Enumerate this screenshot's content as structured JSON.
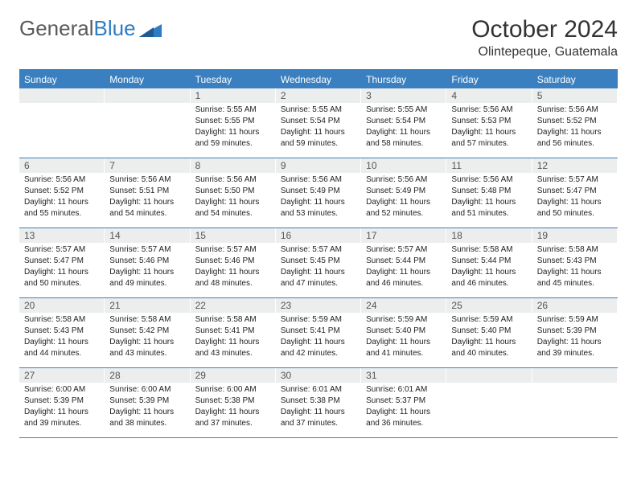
{
  "brand": {
    "part1": "General",
    "part2": "Blue"
  },
  "title": "October 2024",
  "location": "Olintepeque, Guatemala",
  "colors": {
    "header_bar": "#3a80c0",
    "daynum_bg": "#eceded",
    "text": "#222222",
    "logo_gray": "#5a5a5a",
    "logo_blue": "#2e7cc2"
  },
  "fonts": {
    "base_family": "Arial",
    "title_size_pt": 22,
    "location_size_pt": 12,
    "weekday_size_pt": 9,
    "cell_size_pt": 7.5
  },
  "weekdays": [
    "Sunday",
    "Monday",
    "Tuesday",
    "Wednesday",
    "Thursday",
    "Friday",
    "Saturday"
  ],
  "weeks": [
    [
      null,
      null,
      {
        "n": "1",
        "sunrise": "Sunrise: 5:55 AM",
        "sunset": "Sunset: 5:55 PM",
        "day1": "Daylight: 11 hours",
        "day2": "and 59 minutes."
      },
      {
        "n": "2",
        "sunrise": "Sunrise: 5:55 AM",
        "sunset": "Sunset: 5:54 PM",
        "day1": "Daylight: 11 hours",
        "day2": "and 59 minutes."
      },
      {
        "n": "3",
        "sunrise": "Sunrise: 5:55 AM",
        "sunset": "Sunset: 5:54 PM",
        "day1": "Daylight: 11 hours",
        "day2": "and 58 minutes."
      },
      {
        "n": "4",
        "sunrise": "Sunrise: 5:56 AM",
        "sunset": "Sunset: 5:53 PM",
        "day1": "Daylight: 11 hours",
        "day2": "and 57 minutes."
      },
      {
        "n": "5",
        "sunrise": "Sunrise: 5:56 AM",
        "sunset": "Sunset: 5:52 PM",
        "day1": "Daylight: 11 hours",
        "day2": "and 56 minutes."
      }
    ],
    [
      {
        "n": "6",
        "sunrise": "Sunrise: 5:56 AM",
        "sunset": "Sunset: 5:52 PM",
        "day1": "Daylight: 11 hours",
        "day2": "and 55 minutes."
      },
      {
        "n": "7",
        "sunrise": "Sunrise: 5:56 AM",
        "sunset": "Sunset: 5:51 PM",
        "day1": "Daylight: 11 hours",
        "day2": "and 54 minutes."
      },
      {
        "n": "8",
        "sunrise": "Sunrise: 5:56 AM",
        "sunset": "Sunset: 5:50 PM",
        "day1": "Daylight: 11 hours",
        "day2": "and 54 minutes."
      },
      {
        "n": "9",
        "sunrise": "Sunrise: 5:56 AM",
        "sunset": "Sunset: 5:49 PM",
        "day1": "Daylight: 11 hours",
        "day2": "and 53 minutes."
      },
      {
        "n": "10",
        "sunrise": "Sunrise: 5:56 AM",
        "sunset": "Sunset: 5:49 PM",
        "day1": "Daylight: 11 hours",
        "day2": "and 52 minutes."
      },
      {
        "n": "11",
        "sunrise": "Sunrise: 5:56 AM",
        "sunset": "Sunset: 5:48 PM",
        "day1": "Daylight: 11 hours",
        "day2": "and 51 minutes."
      },
      {
        "n": "12",
        "sunrise": "Sunrise: 5:57 AM",
        "sunset": "Sunset: 5:47 PM",
        "day1": "Daylight: 11 hours",
        "day2": "and 50 minutes."
      }
    ],
    [
      {
        "n": "13",
        "sunrise": "Sunrise: 5:57 AM",
        "sunset": "Sunset: 5:47 PM",
        "day1": "Daylight: 11 hours",
        "day2": "and 50 minutes."
      },
      {
        "n": "14",
        "sunrise": "Sunrise: 5:57 AM",
        "sunset": "Sunset: 5:46 PM",
        "day1": "Daylight: 11 hours",
        "day2": "and 49 minutes."
      },
      {
        "n": "15",
        "sunrise": "Sunrise: 5:57 AM",
        "sunset": "Sunset: 5:46 PM",
        "day1": "Daylight: 11 hours",
        "day2": "and 48 minutes."
      },
      {
        "n": "16",
        "sunrise": "Sunrise: 5:57 AM",
        "sunset": "Sunset: 5:45 PM",
        "day1": "Daylight: 11 hours",
        "day2": "and 47 minutes."
      },
      {
        "n": "17",
        "sunrise": "Sunrise: 5:57 AM",
        "sunset": "Sunset: 5:44 PM",
        "day1": "Daylight: 11 hours",
        "day2": "and 46 minutes."
      },
      {
        "n": "18",
        "sunrise": "Sunrise: 5:58 AM",
        "sunset": "Sunset: 5:44 PM",
        "day1": "Daylight: 11 hours",
        "day2": "and 46 minutes."
      },
      {
        "n": "19",
        "sunrise": "Sunrise: 5:58 AM",
        "sunset": "Sunset: 5:43 PM",
        "day1": "Daylight: 11 hours",
        "day2": "and 45 minutes."
      }
    ],
    [
      {
        "n": "20",
        "sunrise": "Sunrise: 5:58 AM",
        "sunset": "Sunset: 5:43 PM",
        "day1": "Daylight: 11 hours",
        "day2": "and 44 minutes."
      },
      {
        "n": "21",
        "sunrise": "Sunrise: 5:58 AM",
        "sunset": "Sunset: 5:42 PM",
        "day1": "Daylight: 11 hours",
        "day2": "and 43 minutes."
      },
      {
        "n": "22",
        "sunrise": "Sunrise: 5:58 AM",
        "sunset": "Sunset: 5:41 PM",
        "day1": "Daylight: 11 hours",
        "day2": "and 43 minutes."
      },
      {
        "n": "23",
        "sunrise": "Sunrise: 5:59 AM",
        "sunset": "Sunset: 5:41 PM",
        "day1": "Daylight: 11 hours",
        "day2": "and 42 minutes."
      },
      {
        "n": "24",
        "sunrise": "Sunrise: 5:59 AM",
        "sunset": "Sunset: 5:40 PM",
        "day1": "Daylight: 11 hours",
        "day2": "and 41 minutes."
      },
      {
        "n": "25",
        "sunrise": "Sunrise: 5:59 AM",
        "sunset": "Sunset: 5:40 PM",
        "day1": "Daylight: 11 hours",
        "day2": "and 40 minutes."
      },
      {
        "n": "26",
        "sunrise": "Sunrise: 5:59 AM",
        "sunset": "Sunset: 5:39 PM",
        "day1": "Daylight: 11 hours",
        "day2": "and 39 minutes."
      }
    ],
    [
      {
        "n": "27",
        "sunrise": "Sunrise: 6:00 AM",
        "sunset": "Sunset: 5:39 PM",
        "day1": "Daylight: 11 hours",
        "day2": "and 39 minutes."
      },
      {
        "n": "28",
        "sunrise": "Sunrise: 6:00 AM",
        "sunset": "Sunset: 5:39 PM",
        "day1": "Daylight: 11 hours",
        "day2": "and 38 minutes."
      },
      {
        "n": "29",
        "sunrise": "Sunrise: 6:00 AM",
        "sunset": "Sunset: 5:38 PM",
        "day1": "Daylight: 11 hours",
        "day2": "and 37 minutes."
      },
      {
        "n": "30",
        "sunrise": "Sunrise: 6:01 AM",
        "sunset": "Sunset: 5:38 PM",
        "day1": "Daylight: 11 hours",
        "day2": "and 37 minutes."
      },
      {
        "n": "31",
        "sunrise": "Sunrise: 6:01 AM",
        "sunset": "Sunset: 5:37 PM",
        "day1": "Daylight: 11 hours",
        "day2": "and 36 minutes."
      },
      null,
      null
    ]
  ]
}
